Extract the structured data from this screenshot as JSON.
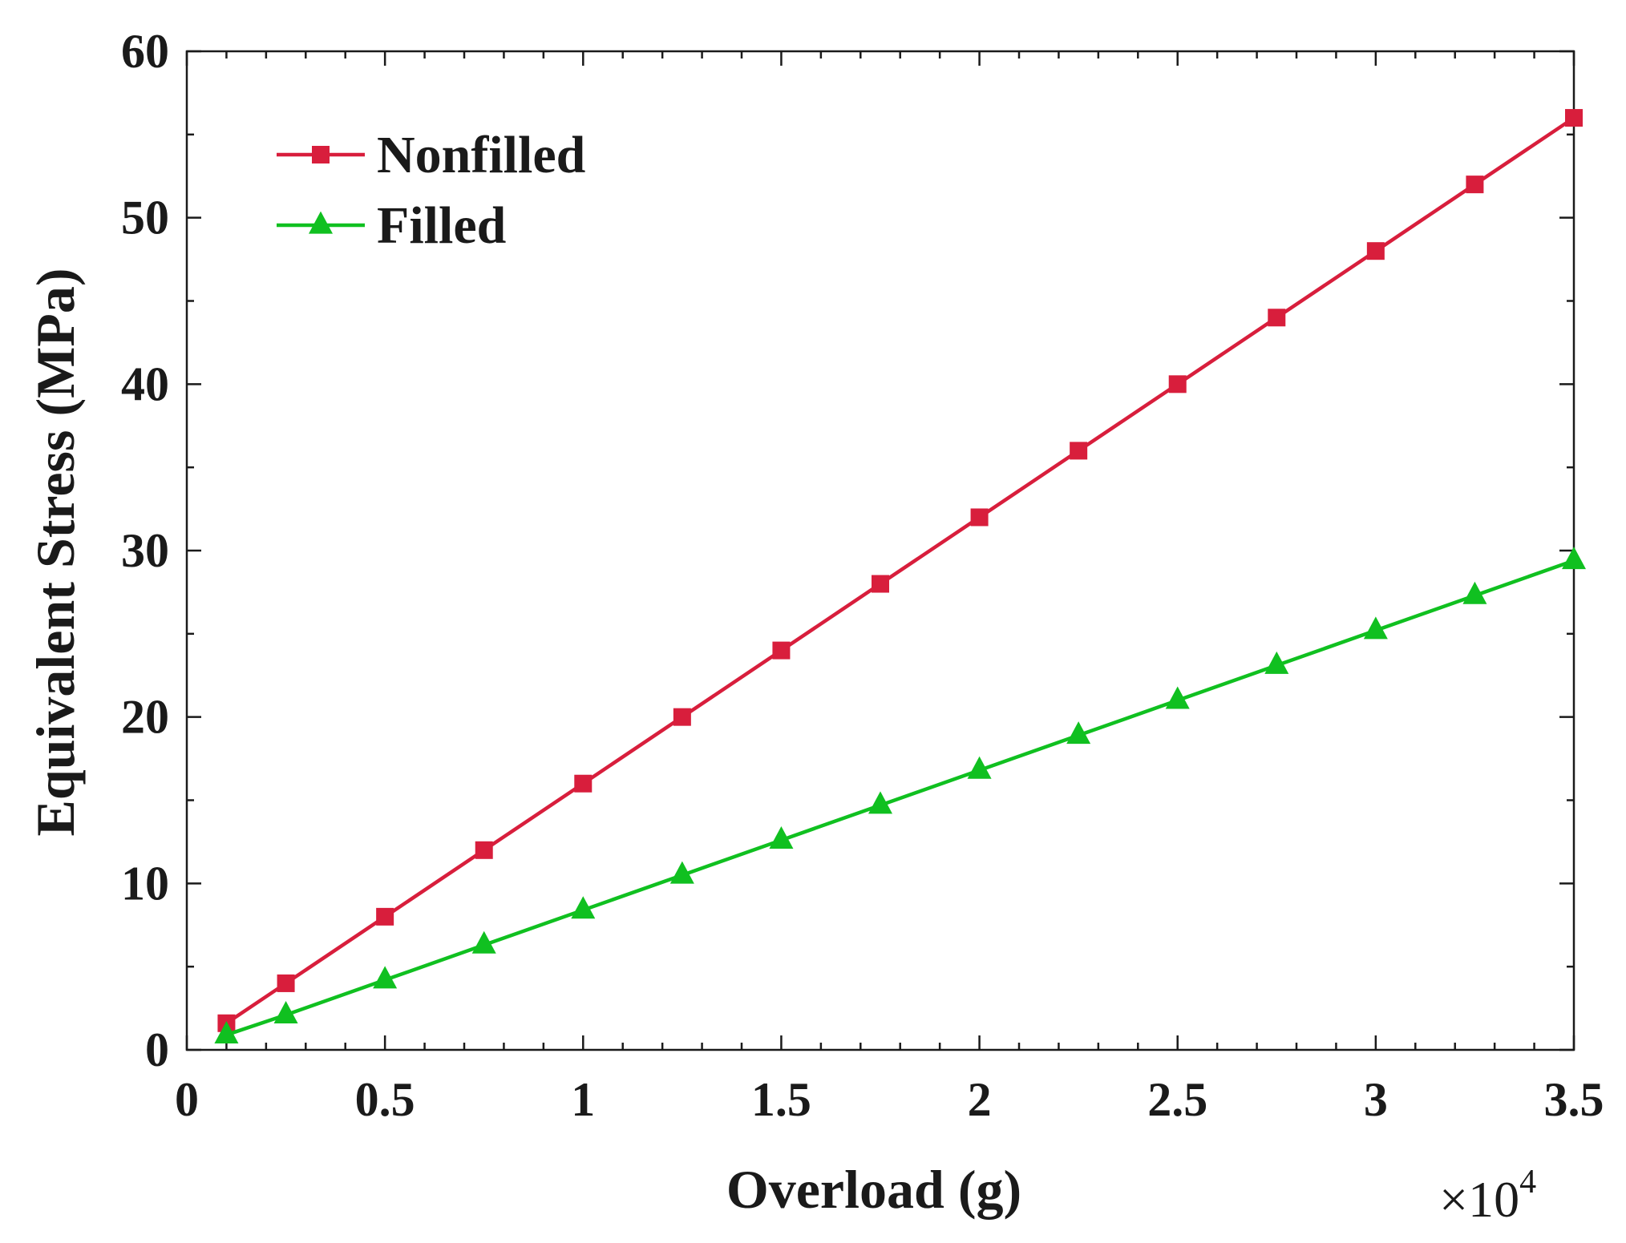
{
  "chart_data": {
    "type": "line",
    "title": "",
    "xlabel": "Overload (g)",
    "ylabel": "Equivalent Stress (MPa)",
    "x_multiplier": "×10",
    "x_multiplier_exponent": "4",
    "xlim": [
      0,
      3.5
    ],
    "ylim": [
      0,
      60
    ],
    "xticks": [
      0,
      0.5,
      1,
      1.5,
      2,
      2.5,
      3,
      3.5
    ],
    "xtick_labels": [
      "0",
      "0.5",
      "1",
      "1.5",
      "2",
      "2.5",
      "3",
      "3.5"
    ],
    "yticks": [
      0,
      10,
      20,
      30,
      40,
      50,
      60
    ],
    "ytick_labels": [
      "0",
      "10",
      "20",
      "30",
      "40",
      "50",
      "60"
    ],
    "grid": false,
    "legend_position": "top-left",
    "series": [
      {
        "name": "Nonfilled",
        "color": "#d81e3c",
        "marker": "square",
        "x": [
          0.1,
          0.25,
          0.5,
          0.75,
          1,
          1.25,
          1.5,
          1.75,
          2,
          2.25,
          2.5,
          2.75,
          3,
          3.25,
          3.5
        ],
        "values": [
          1.6,
          4.0,
          8.0,
          12.0,
          16.0,
          20.0,
          24.0,
          28.0,
          32.0,
          36.0,
          40.0,
          44.0,
          48.0,
          52.0,
          56.0
        ]
      },
      {
        "name": "Filled",
        "color": "#10c020",
        "marker": "triangle",
        "x": [
          0.1,
          0.25,
          0.5,
          0.75,
          1,
          1.25,
          1.5,
          1.75,
          2,
          2.25,
          2.5,
          2.75,
          3,
          3.25,
          3.5
        ],
        "values": [
          0.9,
          2.1,
          4.2,
          6.3,
          8.4,
          10.5,
          12.6,
          14.7,
          16.8,
          18.9,
          21.0,
          23.1,
          25.2,
          27.3,
          29.4
        ]
      }
    ]
  }
}
